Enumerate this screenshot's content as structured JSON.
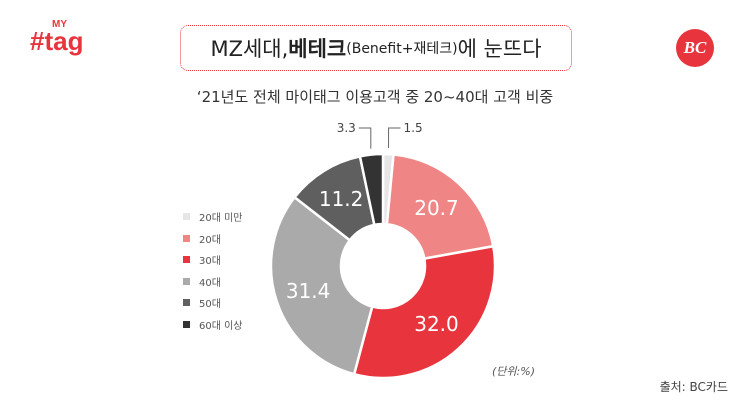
{
  "logo": {
    "small": "MY",
    "main": "#tag"
  },
  "bc_logo": "BC",
  "title": {
    "part1": "MZ세대, ",
    "part2": "베테크",
    "part3": "(Benefit+재테크)",
    "part4": "에 눈뜨다"
  },
  "subtitle": "‘21년도 전체 마이태그 이용고객 중 20~40대 고객 비중",
  "unit": "(단위:%)",
  "source": "출처: BC카드",
  "chart_data": {
    "type": "pie",
    "donut": true,
    "categories": [
      "20대 미만",
      "20대",
      "30대",
      "40대",
      "50대",
      "60대 이상"
    ],
    "values": [
      1.5,
      20.7,
      32.0,
      31.4,
      11.2,
      3.3
    ],
    "value_labels": [
      "1.5",
      "20.7",
      "32.0",
      "31.4",
      "11.2",
      "3.3"
    ],
    "colors": [
      "#e6e6e6",
      "#f08585",
      "#e8343d",
      "#aaaaaa",
      "#5f5f5f",
      "#333333"
    ],
    "label_colors": [
      "#444444",
      "#ffffff",
      "#ffffff",
      "#ffffff",
      "#ffffff",
      "#444444"
    ],
    "legend_position": "left",
    "unit": "%"
  }
}
